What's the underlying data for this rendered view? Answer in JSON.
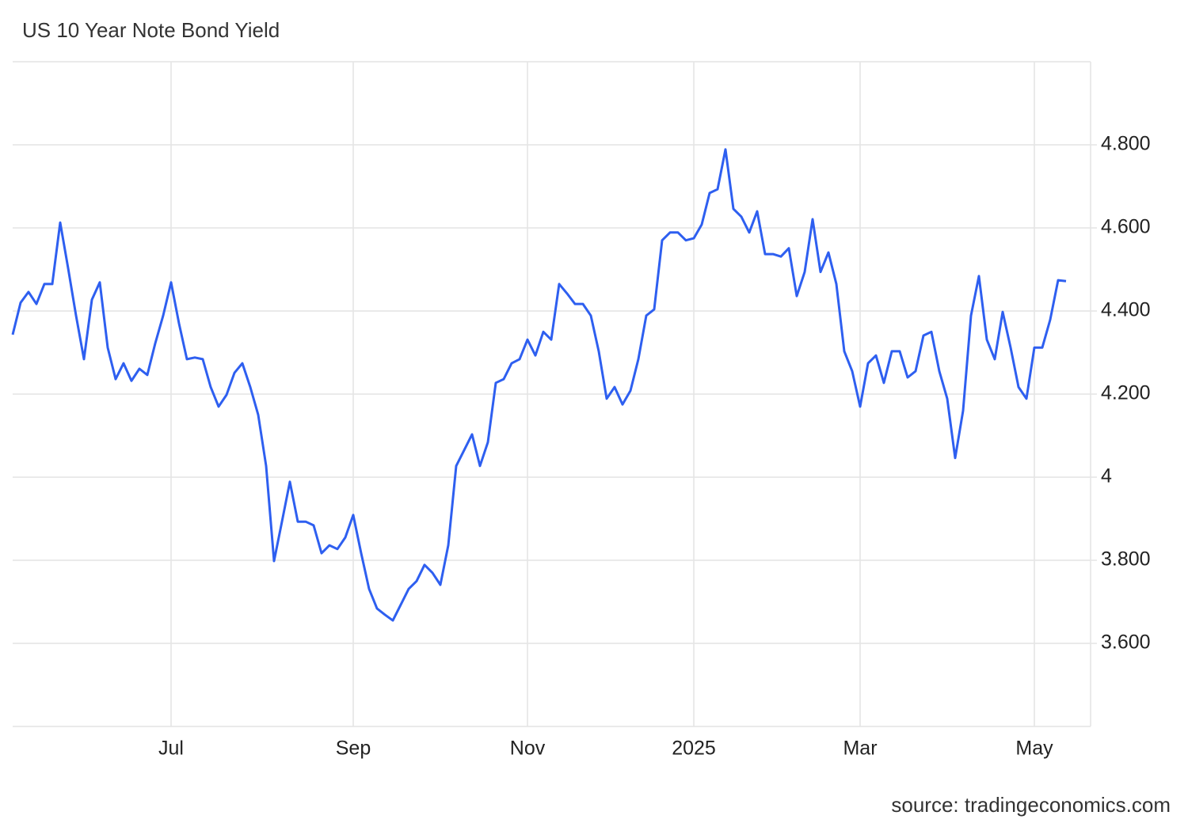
{
  "chart_data": {
    "type": "line",
    "title": "US 10 Year Note Bond Yield",
    "source": "source: tradingeconomics.com",
    "categories": [
      null,
      null,
      null,
      null,
      null,
      null,
      null,
      null,
      null,
      null,
      null,
      null,
      null,
      null,
      null,
      null,
      null,
      null,
      null,
      null,
      "Jul",
      null,
      null,
      null,
      null,
      null,
      null,
      null,
      null,
      null,
      null,
      null,
      null,
      null,
      null,
      null,
      null,
      null,
      null,
      null,
      null,
      null,
      null,
      "Sep",
      null,
      null,
      null,
      null,
      null,
      null,
      null,
      null,
      null,
      null,
      null,
      null,
      null,
      null,
      null,
      null,
      null,
      null,
      null,
      null,
      null,
      "Nov",
      null,
      null,
      null,
      null,
      null,
      null,
      null,
      null,
      null,
      null,
      null,
      null,
      null,
      null,
      null,
      null,
      null,
      null,
      null,
      null,
      "2025",
      null,
      null,
      null,
      null,
      null,
      null,
      null,
      null,
      null,
      null,
      null,
      null,
      null,
      null,
      null,
      null,
      null,
      null,
      null,
      null,
      "Mar",
      null,
      null,
      null,
      null,
      null,
      null,
      null,
      null,
      null,
      null,
      null,
      null,
      null,
      null,
      null,
      null,
      null,
      null,
      null,
      null,
      null,
      "May",
      null,
      null,
      null,
      null
    ],
    "values": [
      4.343,
      4.42,
      4.446,
      4.417,
      4.465,
      4.465,
      4.613,
      4.503,
      4.389,
      4.284,
      4.427,
      4.469,
      4.312,
      4.236,
      4.274,
      4.232,
      4.261,
      4.246,
      4.322,
      4.389,
      4.469,
      4.37,
      4.284,
      4.288,
      4.284,
      4.217,
      4.17,
      4.198,
      4.251,
      4.274,
      4.217,
      4.15,
      4.027,
      3.798,
      3.893,
      3.989,
      3.893,
      3.893,
      3.884,
      3.817,
      3.836,
      3.827,
      3.855,
      3.909,
      3.817,
      3.731,
      3.684,
      3.669,
      3.655,
      3.693,
      3.731,
      3.75,
      3.789,
      3.77,
      3.741,
      3.836,
      4.027,
      4.065,
      4.103,
      4.027,
      4.084,
      4.227,
      4.236,
      4.274,
      4.284,
      4.331,
      4.293,
      4.35,
      4.331,
      4.465,
      4.442,
      4.417,
      4.417,
      4.389,
      4.303,
      4.189,
      4.217,
      4.175,
      4.208,
      4.284,
      4.389,
      4.404,
      4.57,
      4.589,
      4.589,
      4.57,
      4.575,
      4.608,
      4.684,
      4.693,
      4.789,
      4.646,
      4.627,
      4.589,
      4.64,
      4.537,
      4.537,
      4.531,
      4.551,
      4.436,
      4.494,
      4.621,
      4.494,
      4.541,
      4.465,
      4.303,
      4.255,
      4.17,
      4.274,
      4.293,
      4.227,
      4.303,
      4.303,
      4.24,
      4.255,
      4.341,
      4.35,
      4.255,
      4.189,
      4.046,
      4.16,
      4.389,
      4.484,
      4.331,
      4.284,
      4.398,
      4.312,
      4.217,
      4.189,
      4.312,
      4.312,
      4.379,
      4.474,
      4.472
    ],
    "color": "#2e5ff0",
    "ylim": [
      3.4,
      5.0
    ],
    "yticks": [
      {
        "value": 3.6,
        "label": "3.600"
      },
      {
        "value": 3.8,
        "label": "3.800"
      },
      4,
      {
        "value": 4.2,
        "label": "4.200"
      },
      {
        "value": 4.4,
        "label": "4.400"
      },
      {
        "value": 4.6,
        "label": "4.600"
      },
      {
        "value": 4.8,
        "label": "4.800"
      }
    ],
    "grid": true
  }
}
